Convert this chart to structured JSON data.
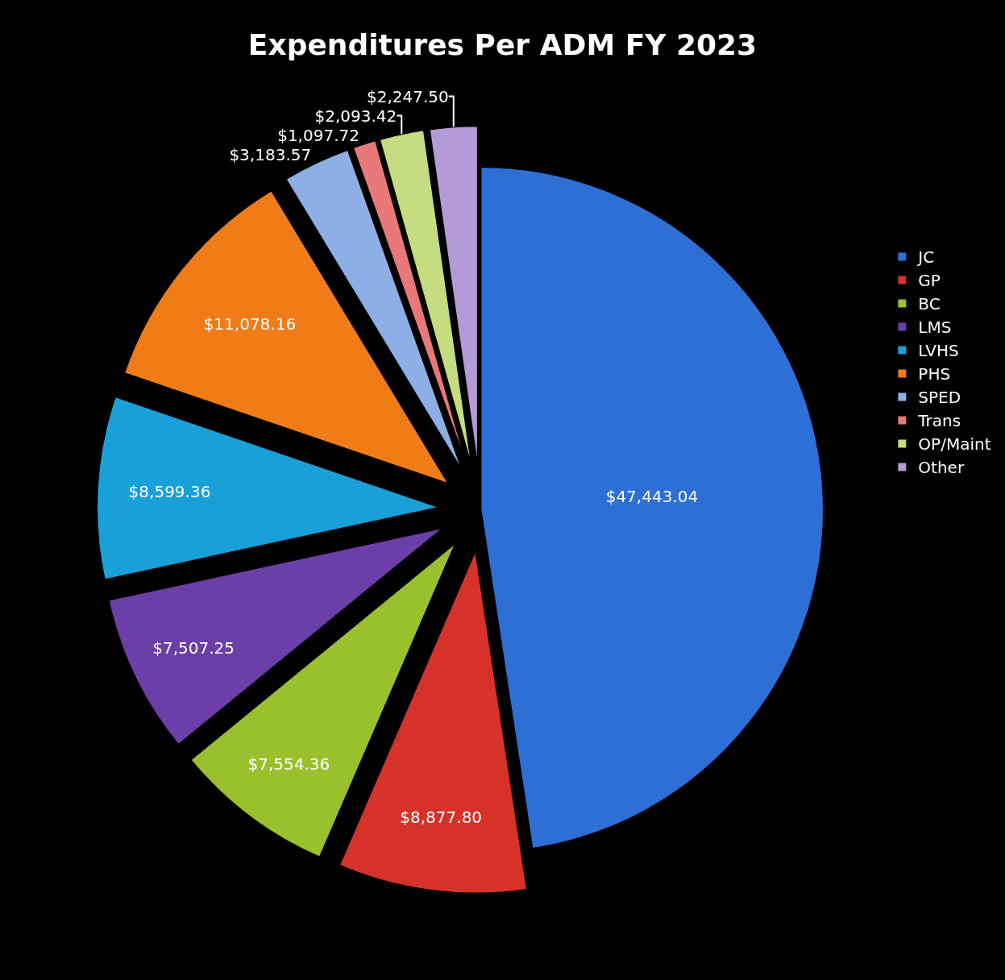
{
  "chart_data": {
    "type": "pie",
    "title": "Expenditures Per ADM FY 2023",
    "categories": [
      "JC",
      "GP",
      "BC",
      "LMS",
      "LVHS",
      "PHS",
      "SPED",
      "Trans",
      "OP/Maint",
      "Other"
    ],
    "values": [
      47443.04,
      8877.8,
      7554.36,
      7507.25,
      8599.36,
      11078.16,
      3183.57,
      1097.72,
      2093.42,
      2247.5
    ],
    "value_labels": [
      "$47,443.04",
      "$8,877.80",
      "$7,554.36",
      "$7,507.25",
      "$8,599.36",
      "$11,078.16",
      "$3,183.57",
      "$1,097.72",
      "$2,093.42",
      "$2,247.50"
    ],
    "colors": [
      "#2e6fd6",
      "#d6322a",
      "#9bc02e",
      "#6c3fa8",
      "#1aa0d8",
      "#f07c18",
      "#8eaee6",
      "#e8787a",
      "#c6dc80",
      "#b49ad6"
    ],
    "legend": "right"
  }
}
